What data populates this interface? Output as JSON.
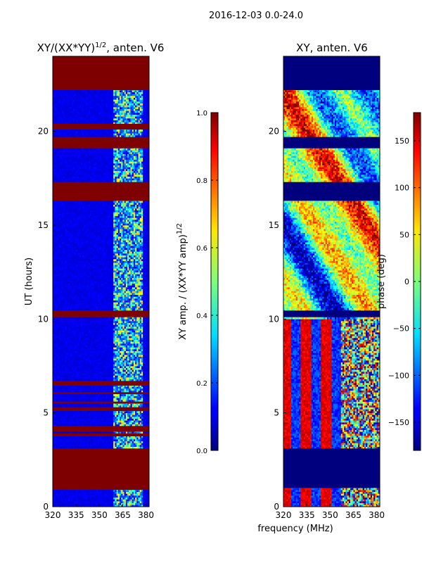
{
  "figure": {
    "suptitle": "2016-12-03 0.0-24.0",
    "xlabel_common": "frequency (MHz)"
  },
  "colors": {
    "background": "#ffffff",
    "axis": "#000000",
    "blank_band": "#7f0000",
    "floor": "#00007f"
  },
  "chart_data": [
    {
      "type": "heatmap",
      "title": "XY/(XX*YY)",
      "title_exp": "1/2",
      "title_suffix": ", anten. V6",
      "ylabel": "UT (hours)",
      "xlabel": "",
      "xlim": [
        320,
        382
      ],
      "ylim": [
        0,
        24
      ],
      "xticks": [
        320,
        335,
        350,
        365,
        380
      ],
      "yticks": [
        0,
        5,
        10,
        15,
        20
      ],
      "xtick_labels": [
        "320",
        "335",
        "350",
        "365",
        "380"
      ],
      "ytick_labels": [
        "0",
        "5",
        "10",
        "15",
        "20"
      ],
      "colorbar": {
        "label": "XY amp. / (XX*YY amp)",
        "label_exp": "1/2",
        "range": [
          0.0,
          1.0
        ],
        "ticks": [
          0.0,
          0.2,
          0.4,
          0.6,
          0.8,
          1.0
        ],
        "tick_labels": [
          "0.0",
          "0.2",
          "0.4",
          "0.6",
          "0.8",
          "1.0"
        ]
      },
      "blank_bands_hours": [
        [
          0.9,
          3.1
        ],
        [
          3.75,
          3.9
        ],
        [
          4.0,
          4.3
        ],
        [
          5.1,
          5.3
        ],
        [
          5.5,
          5.6
        ],
        [
          6.0,
          6.1
        ],
        [
          6.45,
          6.7
        ],
        [
          10.1,
          10.45
        ],
        [
          16.3,
          17.3
        ],
        [
          19.1,
          19.7
        ],
        [
          20.1,
          20.4
        ],
        [
          22.2,
          24.0
        ]
      ],
      "active_band_mhz": [
        359,
        378
      ]
    },
    {
      "type": "heatmap",
      "title": "XY, anten. V6",
      "ylabel": "",
      "xlabel": "frequency (MHz)",
      "xlim": [
        320,
        382
      ],
      "ylim": [
        0,
        24
      ],
      "xticks": [
        320,
        335,
        350,
        365,
        380
      ],
      "yticks": [
        0,
        5,
        10,
        15,
        20
      ],
      "xtick_labels": [
        "320",
        "335",
        "350",
        "365",
        "380"
      ],
      "ytick_labels": [
        "0",
        "5",
        "10",
        "15",
        "20"
      ],
      "colorbar": {
        "label": "phase (deg)",
        "range": [
          -180,
          180
        ],
        "ticks": [
          -150,
          -100,
          -50,
          0,
          50,
          100,
          150
        ],
        "tick_labels": [
          "−150",
          "−100",
          "−50",
          "0",
          "50",
          "100",
          "150"
        ]
      },
      "blank_bands_hours": [
        [
          1.0,
          3.1
        ],
        [
          10.1,
          10.45
        ],
        [
          16.3,
          17.3
        ],
        [
          19.1,
          19.7
        ],
        [
          22.2,
          24.0
        ]
      ]
    }
  ]
}
